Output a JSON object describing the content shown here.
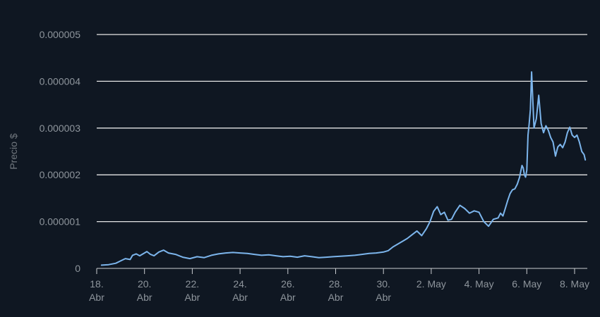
{
  "chart_data": {
    "type": "line",
    "title": "",
    "ylabel": "Precio $",
    "xlabel": "",
    "ylim": [
      0,
      5e-06
    ],
    "grid": true,
    "colors": {
      "background": "#0f1722",
      "line": "#7cb5ec",
      "grid": "#e6e6e6",
      "ticks": "#8e959c"
    },
    "y_ticks": [
      {
        "value": 0,
        "label": "0"
      },
      {
        "value": 1e-06,
        "label": "0.000001"
      },
      {
        "value": 2e-06,
        "label": "0.000002"
      },
      {
        "value": 3e-06,
        "label": "0.000003"
      },
      {
        "value": 4e-06,
        "label": "0.000004"
      },
      {
        "value": 5e-06,
        "label": "0.000005"
      }
    ],
    "x_range": [
      0,
      20.55
    ],
    "x_ticks": [
      {
        "value": 0,
        "line1": "18.",
        "line2": "Abr"
      },
      {
        "value": 2,
        "line1": "20.",
        "line2": "Abr"
      },
      {
        "value": 4,
        "line1": "22.",
        "line2": "Abr"
      },
      {
        "value": 6,
        "line1": "24.",
        "line2": "Abr"
      },
      {
        "value": 8,
        "line1": "26.",
        "line2": "Abr"
      },
      {
        "value": 10,
        "line1": "28.",
        "line2": "Abr"
      },
      {
        "value": 12,
        "line1": "30.",
        "line2": "Abr"
      },
      {
        "value": 14,
        "line1": "2. May",
        "line2": ""
      },
      {
        "value": 16,
        "line1": "4. May",
        "line2": ""
      },
      {
        "value": 18,
        "line1": "6. May",
        "line2": ""
      },
      {
        "value": 20,
        "line1": "8. May",
        "line2": ""
      }
    ],
    "series": [
      {
        "x": [
          0.2,
          0.5,
          0.8,
          1.0,
          1.2,
          1.4,
          1.5,
          1.65,
          1.8,
          2.0,
          2.1,
          2.25,
          2.4,
          2.6,
          2.8,
          3.0,
          3.3,
          3.6,
          3.9,
          4.2,
          4.5,
          4.8,
          5.1,
          5.4,
          5.7,
          6.0,
          6.3,
          6.6,
          6.9,
          7.2,
          7.5,
          7.8,
          8.1,
          8.4,
          8.7,
          9.0,
          9.3,
          9.6,
          9.9,
          10.2,
          10.5,
          10.8,
          11.1,
          11.4,
          11.7,
          12.0,
          12.2,
          12.4,
          12.6,
          12.8,
          13.0,
          13.2,
          13.4,
          13.6,
          13.8,
          13.95,
          14.1,
          14.25,
          14.4,
          14.55,
          14.7,
          14.85,
          15.0,
          15.2,
          15.4,
          15.6,
          15.8,
          16.0,
          16.2,
          16.4,
          16.6,
          16.8,
          16.9,
          17.0,
          17.1,
          17.2,
          17.3,
          17.4,
          17.5,
          17.6,
          17.7,
          17.75,
          17.8,
          17.85,
          17.9,
          17.95,
          18.0,
          18.05,
          18.1,
          18.15,
          18.2,
          18.3,
          18.4,
          18.5,
          18.6,
          18.7,
          18.8,
          18.9,
          19.0,
          19.1,
          19.2,
          19.3,
          19.4,
          19.5,
          19.6,
          19.7,
          19.8,
          19.9,
          20.0,
          20.1,
          20.2,
          20.3,
          20.4,
          20.45
        ],
        "y": [
          7e-08,
          8e-08,
          1.1e-07,
          1.6e-07,
          2.1e-07,
          1.9e-07,
          2.8e-07,
          3.1e-07,
          2.7e-07,
          3.3e-07,
          3.6e-07,
          3e-07,
          2.7e-07,
          3.5e-07,
          3.9e-07,
          3.3e-07,
          3e-07,
          2.4e-07,
          2.1e-07,
          2.5e-07,
          2.3e-07,
          2.8e-07,
          3.1e-07,
          3.3e-07,
          3.4e-07,
          3.3e-07,
          3.2e-07,
          3e-07,
          2.8e-07,
          2.9e-07,
          2.7e-07,
          2.5e-07,
          2.6e-07,
          2.4e-07,
          2.7e-07,
          2.5e-07,
          2.3e-07,
          2.4e-07,
          2.5e-07,
          2.6e-07,
          2.7e-07,
          2.8e-07,
          3e-07,
          3.2e-07,
          3.3e-07,
          3.5e-07,
          3.8e-07,
          4.6e-07,
          5.2e-07,
          5.8e-07,
          6.4e-07,
          7.2e-07,
          8e-07,
          7e-07,
          8.5e-07,
          1e-06,
          1.22e-06,
          1.32e-06,
          1.15e-06,
          1.2e-06,
          1.03e-06,
          1.05e-06,
          1.2e-06,
          1.35e-06,
          1.28e-06,
          1.18e-06,
          1.23e-06,
          1.2e-06,
          1e-06,
          9e-07,
          1.05e-06,
          1.08e-06,
          1.18e-06,
          1.12e-06,
          1.28e-06,
          1.45e-06,
          1.6e-06,
          1.68e-06,
          1.7e-06,
          1.8e-06,
          1.95e-06,
          2.08e-06,
          2.2e-06,
          2.15e-06,
          2e-06,
          1.95e-06,
          2.1e-06,
          2.85e-06,
          3.1e-06,
          3.4e-06,
          4.2e-06,
          3e-06,
          3.2e-06,
          3.7e-06,
          3.1e-06,
          2.9e-06,
          3.05e-06,
          2.95e-06,
          2.8e-06,
          2.7e-06,
          2.4e-06,
          2.6e-06,
          2.65e-06,
          2.58e-06,
          2.7e-06,
          2.9e-06,
          3.02e-06,
          2.85e-06,
          2.8e-06,
          2.85e-06,
          2.7e-06,
          2.5e-06,
          2.43e-06,
          2.32e-06
        ]
      }
    ]
  }
}
